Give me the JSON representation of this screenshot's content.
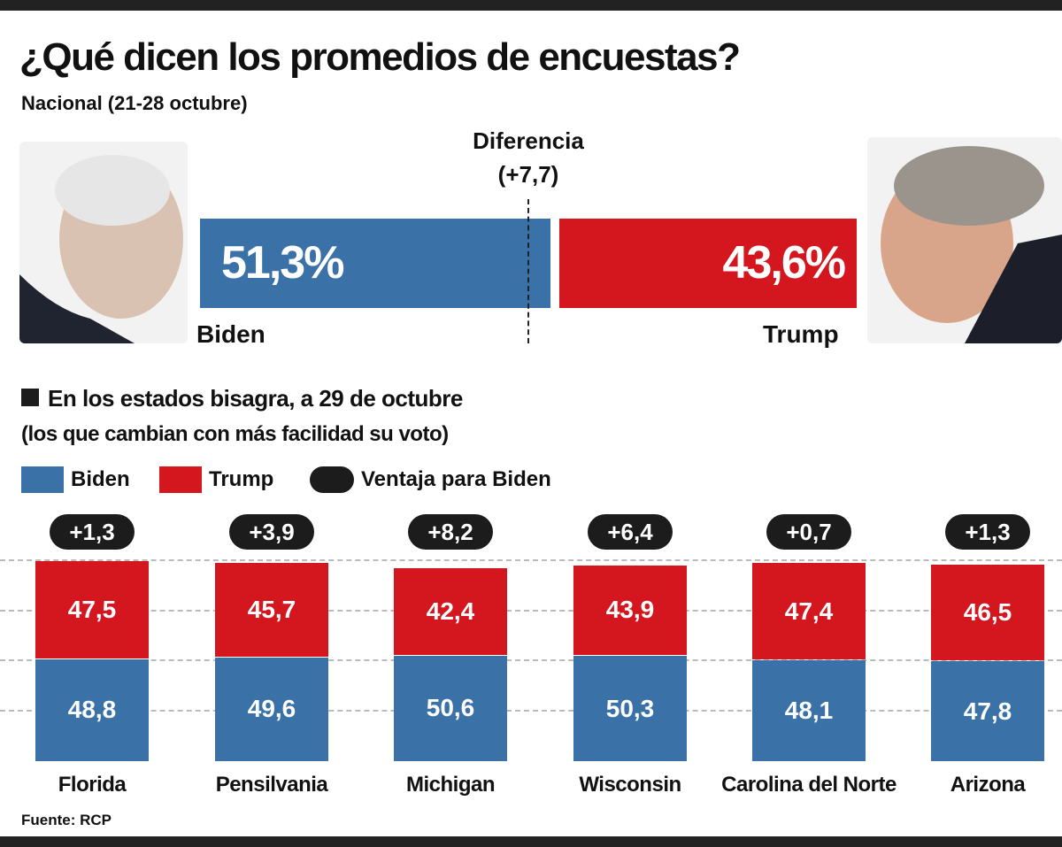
{
  "title": "¿Qué dicen los promedios de encuestas?",
  "subtitle": "Nacional (21-28 octubre)",
  "national": {
    "difference_label": "Diferencia",
    "difference_value": "(+7,7)",
    "biden_label": "Biden",
    "biden_value": 51.3,
    "biden_text": "51,3%",
    "trump_label": "Trump",
    "trump_value": 43.6,
    "trump_text": "43,6%"
  },
  "section_title": "En los estados bisagra, a 29 de octubre",
  "section_subtitle": "(los que cambian con más facilidad su voto)",
  "legend": [
    {
      "label": "Biden",
      "color": "#3a72a8"
    },
    {
      "label": "Trump",
      "color": "#d4161e"
    },
    {
      "label": "Ventaja para Biden",
      "color": "#1c1c1c"
    }
  ],
  "source": "Fuente: RCP",
  "colors": {
    "biden": "#3a72a8",
    "trump": "#d4161e",
    "badge": "#1c1c1c"
  },
  "chart_data": {
    "type": "bar",
    "stacked": true,
    "categories": [
      "Florida",
      "Pensilvania",
      "Michigan",
      "Wisconsin",
      "Carolina del Norte",
      "Arizona"
    ],
    "series": [
      {
        "name": "Biden",
        "values": [
          48.8,
          49.6,
          50.6,
          50.3,
          48.1,
          47.8
        ],
        "labels": [
          "48,8",
          "49,6",
          "50,6",
          "50,3",
          "48,1",
          "47,8"
        ]
      },
      {
        "name": "Trump",
        "values": [
          47.5,
          45.7,
          42.4,
          43.9,
          47.4,
          46.5
        ],
        "labels": [
          "47,5",
          "45,7",
          "42,4",
          "43,9",
          "47,4",
          "46,5"
        ]
      }
    ],
    "advantage": [
      "+1,3",
      "+3,9",
      "+8,2",
      "+6,4",
      "+0,7",
      "+1,3"
    ],
    "grid": true
  }
}
